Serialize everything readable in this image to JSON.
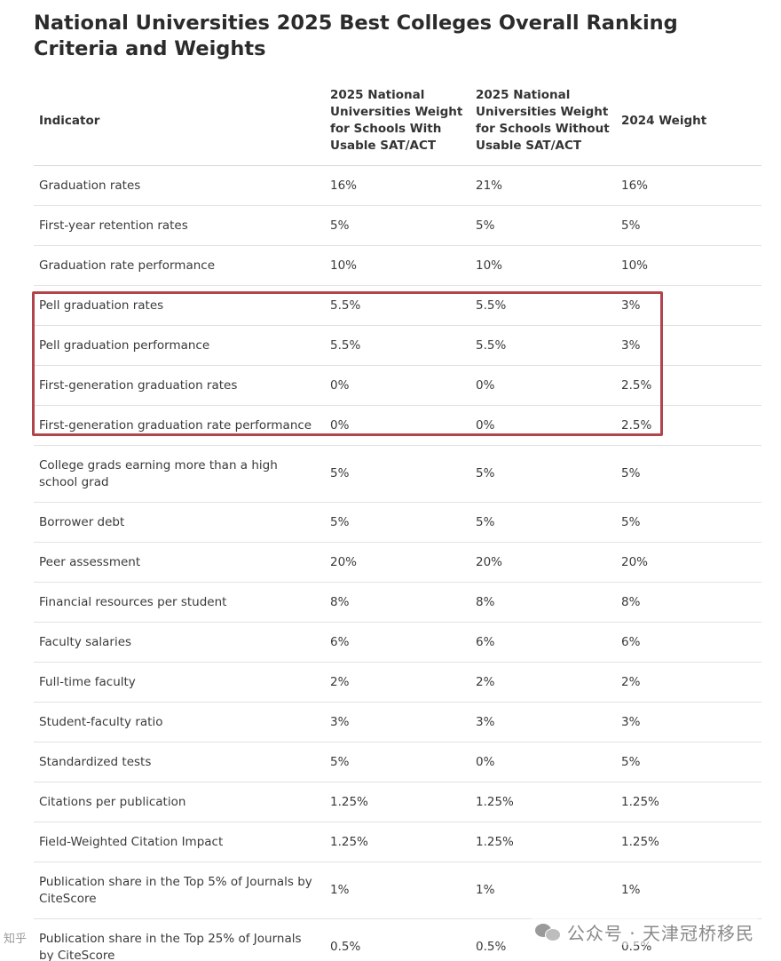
{
  "title": "National Universities 2025 Best Colleges Overall Ranking Criteria and Weights",
  "table": {
    "headers": [
      "Indicator",
      "2025 National Universities Weight for Schools With Usable SAT/ACT",
      "2025 National Universities Weight for Schools Without Usable SAT/ACT",
      "2024 Weight"
    ],
    "rows": [
      [
        "Graduation rates",
        "16%",
        "21%",
        "16%"
      ],
      [
        "First-year retention rates",
        "5%",
        "5%",
        "5%"
      ],
      [
        "Graduation rate performance",
        "10%",
        "10%",
        "10%"
      ],
      [
        "Pell graduation rates",
        "5.5%",
        "5.5%",
        "3%"
      ],
      [
        "Pell graduation performance",
        "5.5%",
        "5.5%",
        "3%"
      ],
      [
        "First-generation graduation rates",
        "0%",
        "0%",
        "2.5%"
      ],
      [
        "First-generation graduation rate performance",
        "0%",
        "0%",
        "2.5%"
      ],
      [
        "College grads earning more than a high school grad",
        "5%",
        "5%",
        "5%"
      ],
      [
        "Borrower debt",
        "5%",
        "5%",
        "5%"
      ],
      [
        "Peer assessment",
        "20%",
        "20%",
        "20%"
      ],
      [
        "Financial resources per student",
        "8%",
        "8%",
        "8%"
      ],
      [
        "Faculty salaries",
        "6%",
        "6%",
        "6%"
      ],
      [
        "Full-time faculty",
        "2%",
        "2%",
        "2%"
      ],
      [
        "Student-faculty ratio",
        "3%",
        "3%",
        "3%"
      ],
      [
        "Standardized tests",
        "5%",
        "0%",
        "5%"
      ],
      [
        "Citations per publication",
        "1.25%",
        "1.25%",
        "1.25%"
      ],
      [
        "Field-Weighted Citation Impact",
        "1.25%",
        "1.25%",
        "1.25%"
      ],
      [
        "Publication share in the Top 5% of Journals by CiteScore",
        "1%",
        "1%",
        "1%"
      ],
      [
        "Publication share in the Top 25% of Journals by CiteScore",
        "0.5%",
        "0.5%",
        "0.5%"
      ]
    ]
  },
  "highlight": {
    "color": "#b0454c",
    "rows": [
      "Pell graduation rates",
      "Pell graduation performance",
      "First-generation graduation rates",
      "First-generation graduation rate performance"
    ]
  },
  "watermark": {
    "text": "公众号 · 天津冠桥移民",
    "icon": "wechat-icon"
  },
  "corner_mark": {
    "text": "知乎"
  }
}
